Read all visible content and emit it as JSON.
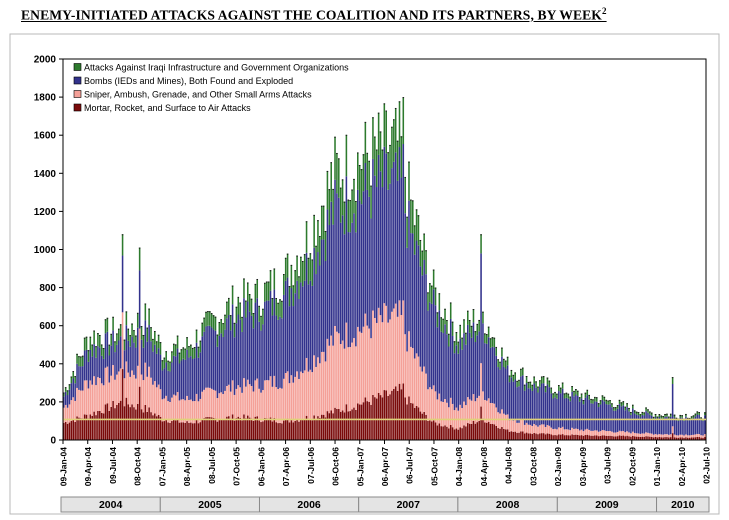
{
  "title": "ENEMY-INITIATED ATTACKS AGAINST THE COALITION AND ITS PARTNERS, BY WEEK",
  "title_footnote": "2",
  "chart_data": {
    "type": "bar",
    "stacked": true,
    "title": "ENEMY-INITIATED ATTACKS AGAINST THE COALITION AND ITS PARTNERS, BY WEEK",
    "xlabel": "",
    "ylabel": "",
    "ylim": [
      0,
      2000
    ],
    "yticks": [
      0,
      200,
      400,
      600,
      800,
      1000,
      1200,
      1400,
      1600,
      1800,
      2000
    ],
    "grid": false,
    "legend_position": "top-left",
    "x_start": "2004-01-09",
    "x_end": "2010-07-02",
    "x_interval": "week",
    "xtick_labels": [
      "09-Jan-04",
      "09-Apr-04",
      "09-Jul-04",
      "08-Oct-04",
      "07-Jan-05",
      "08-Apr-05",
      "08-Jul-05",
      "07-Oct-05",
      "06-Jan-06",
      "07-Apr-06",
      "07-Jul-06",
      "06-Oct-06",
      "05-Jan-07",
      "06-Apr-07",
      "06-Jul-07",
      "05-Oct-07",
      "04-Jan-08",
      "04-Apr-08",
      "04-Jul-08",
      "03-Oct-08",
      "02-Jan-09",
      "03-Apr-09",
      "03-Jul-09",
      "02-Oct-09",
      "01-Jan-10",
      "02-Apr-10",
      "02-Jul-10"
    ],
    "year_labels": [
      "2004",
      "2005",
      "2006",
      "2007",
      "2008",
      "2009",
      "2010"
    ],
    "year_bounds": [
      "2004-01-09",
      "2005-01-01",
      "2006-01-01",
      "2007-01-01",
      "2008-01-01",
      "2009-01-01",
      "2010-01-01",
      "2010-07-02"
    ],
    "series": [
      {
        "name": "Mortar, Rocket, and Surface to Air Attacks",
        "color": "#7a0a0a",
        "x": [
          "2004-01-09",
          "2004-04-09",
          "2004-08-13",
          "2004-11-12",
          "2005-01-07",
          "2005-04-08",
          "2005-07-08",
          "2005-10-07",
          "2006-01-06",
          "2006-04-07",
          "2006-07-07",
          "2006-10-06",
          "2007-01-05",
          "2007-04-06",
          "2007-06-06",
          "2007-07-06",
          "2007-10-05",
          "2008-01-04",
          "2008-04-04",
          "2008-07-04",
          "2008-10-03",
          "2009-01-02",
          "2009-04-03",
          "2009-07-03",
          "2009-10-02",
          "2010-01-01",
          "2010-04-02",
          "2010-07-02"
        ],
        "values": [
          90,
          130,
          200,
          160,
          110,
          90,
          110,
          120,
          110,
          100,
          120,
          150,
          190,
          230,
          260,
          200,
          90,
          60,
          110,
          50,
          35,
          28,
          25,
          22,
          20,
          16,
          14,
          14
        ]
      },
      {
        "name": "Sniper, Ambush, Grenade, and Other Small Arms Attacks",
        "color": "#f4a098",
        "x": [
          "2004-01-09",
          "2004-04-09",
          "2004-08-13",
          "2004-11-12",
          "2005-01-07",
          "2005-04-08",
          "2005-07-08",
          "2005-10-07",
          "2006-01-06",
          "2006-04-07",
          "2006-07-07",
          "2006-10-06",
          "2007-01-05",
          "2007-04-06",
          "2007-06-06",
          "2007-07-06",
          "2007-10-05",
          "2008-01-04",
          "2008-04-04",
          "2008-07-04",
          "2008-10-03",
          "2009-01-02",
          "2009-04-03",
          "2009-07-03",
          "2009-10-02",
          "2010-01-01",
          "2010-04-02",
          "2010-07-02"
        ],
        "values": [
          80,
          180,
          160,
          200,
          130,
          120,
          140,
          160,
          180,
          220,
          290,
          380,
          390,
          400,
          380,
          300,
          160,
          110,
          140,
          70,
          45,
          35,
          28,
          25,
          20,
          16,
          14,
          14
        ]
      },
      {
        "name": "Bombs (IEDs and Mines), Both Found and Exploded",
        "color": "#32328c",
        "x": [
          "2004-01-09",
          "2004-04-09",
          "2004-08-13",
          "2004-11-12",
          "2005-01-07",
          "2005-04-08",
          "2005-07-08",
          "2005-10-07",
          "2006-01-06",
          "2006-04-07",
          "2006-07-07",
          "2006-10-06",
          "2007-01-05",
          "2007-04-06",
          "2007-06-06",
          "2007-07-06",
          "2007-10-05",
          "2008-01-04",
          "2008-04-04",
          "2008-07-04",
          "2008-10-03",
          "2009-01-02",
          "2009-04-03",
          "2009-07-03",
          "2009-10-02",
          "2010-01-01",
          "2010-04-02",
          "2010-07-02"
        ],
        "values": [
          60,
          160,
          160,
          200,
          170,
          220,
          300,
          360,
          380,
          440,
          520,
          680,
          700,
          720,
          700,
          600,
          440,
          330,
          350,
          230,
          200,
          180,
          160,
          140,
          110,
          90,
          90,
          90
        ]
      },
      {
        "name": "Attacks Against Iraqi Infrastructure and Government Organizations",
        "color": "#2d7a2d",
        "x": [
          "2004-01-09",
          "2004-04-09",
          "2004-08-13",
          "2004-11-12",
          "2005-01-07",
          "2005-04-08",
          "2005-07-08",
          "2005-10-07",
          "2006-01-06",
          "2006-04-07",
          "2006-07-07",
          "2006-10-06",
          "2007-01-05",
          "2007-04-06",
          "2007-06-06",
          "2007-07-06",
          "2007-10-05",
          "2008-01-04",
          "2008-04-04",
          "2008-07-04",
          "2008-10-03",
          "2009-01-02",
          "2009-04-03",
          "2009-07-03",
          "2009-10-02",
          "2010-01-01",
          "2010-04-02",
          "2010-07-02"
        ],
        "values": [
          20,
          70,
          60,
          80,
          60,
          60,
          70,
          90,
          90,
          110,
          160,
          200,
          190,
          200,
          210,
          180,
          90,
          70,
          60,
          40,
          35,
          30,
          25,
          22,
          18,
          16,
          14,
          14
        ]
      }
    ],
    "spikes": [
      {
        "x": "2004-08-13",
        "total": 1080
      },
      {
        "x": "2004-10-15",
        "total": 1010
      },
      {
        "x": "2007-06-15",
        "total": 1800
      },
      {
        "x": "2008-03-28",
        "total": 1080
      },
      {
        "x": "2010-03-05",
        "total": 330
      }
    ],
    "reference_line": {
      "y": 108,
      "color": "#e0d27a"
    }
  }
}
